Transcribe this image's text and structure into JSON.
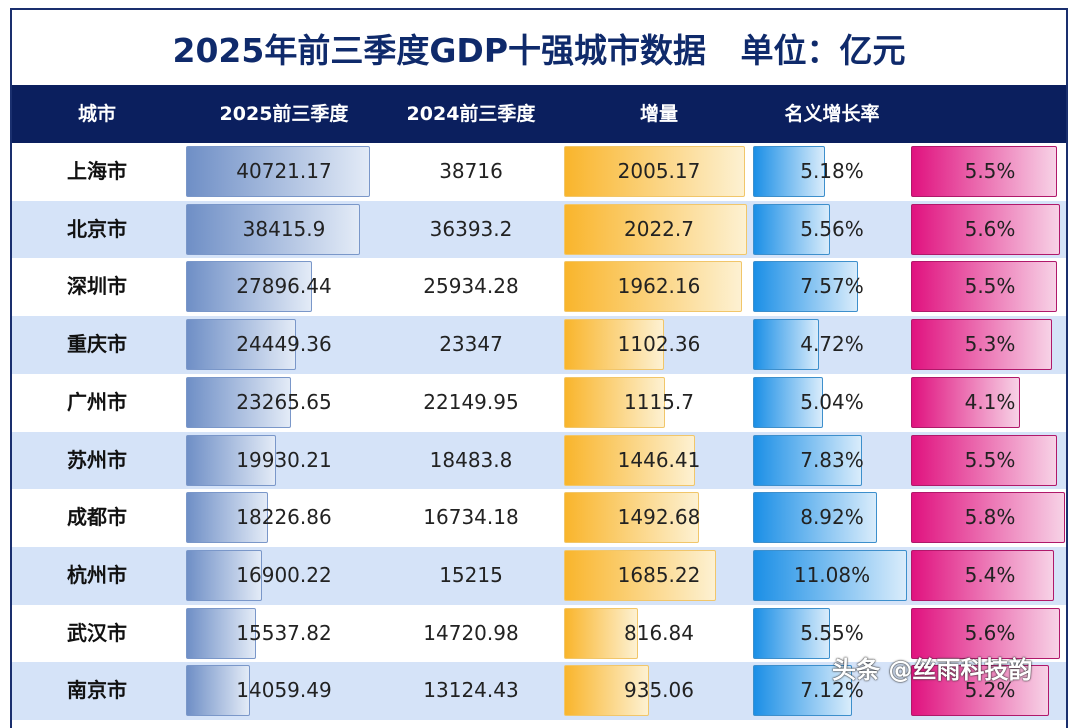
{
  "title": "2025年前三季度GDP十强城市数据   单位：亿元",
  "watermark": "头条 @丝雨科技韵",
  "colors": {
    "navy": "#0b1f5e",
    "gdp_bar": "#6f8fc6",
    "increase_bar": "#f9b52c",
    "nominal_rate_bar": "#1b8fe6",
    "real_rate_bar": "#e0127f",
    "alt_row": "#d5e3f8"
  },
  "chart_data": {
    "type": "table",
    "title": "2025年前三季度GDP十强城市数据   单位：亿元",
    "columns": [
      "城市",
      "2025前三季度",
      "2024前三季度",
      "增量",
      "名义增长率",
      ""
    ],
    "rows": [
      [
        "上海市",
        "40721.17",
        "38716",
        "2005.17",
        "5.18%",
        "5.5%"
      ],
      [
        "北京市",
        "38415.9",
        "36393.2",
        "2022.7",
        "5.56%",
        "5.6%"
      ],
      [
        "深圳市",
        "27896.44",
        "25934.28",
        "1962.16",
        "7.57%",
        "5.5%"
      ],
      [
        "重庆市",
        "24449.36",
        "23347",
        "1102.36",
        "4.72%",
        "5.3%"
      ],
      [
        "广州市",
        "23265.65",
        "22149.95",
        "1115.7",
        "5.04%",
        "4.1%"
      ],
      [
        "苏州市",
        "19930.21",
        "18483.8",
        "1446.41",
        "7.83%",
        "5.5%"
      ],
      [
        "成都市",
        "18226.86",
        "16734.18",
        "1492.68",
        "8.92%",
        "5.8%"
      ],
      [
        "杭州市",
        "16900.22",
        "15215",
        "1685.22",
        "11.08%",
        "5.4%"
      ],
      [
        "武汉市",
        "15537.82",
        "14720.98",
        "816.84",
        "5.55%",
        "5.6%"
      ],
      [
        "南京市",
        "14059.49",
        "13124.43",
        "935.06",
        "7.12%",
        "5.2%"
      ]
    ]
  }
}
